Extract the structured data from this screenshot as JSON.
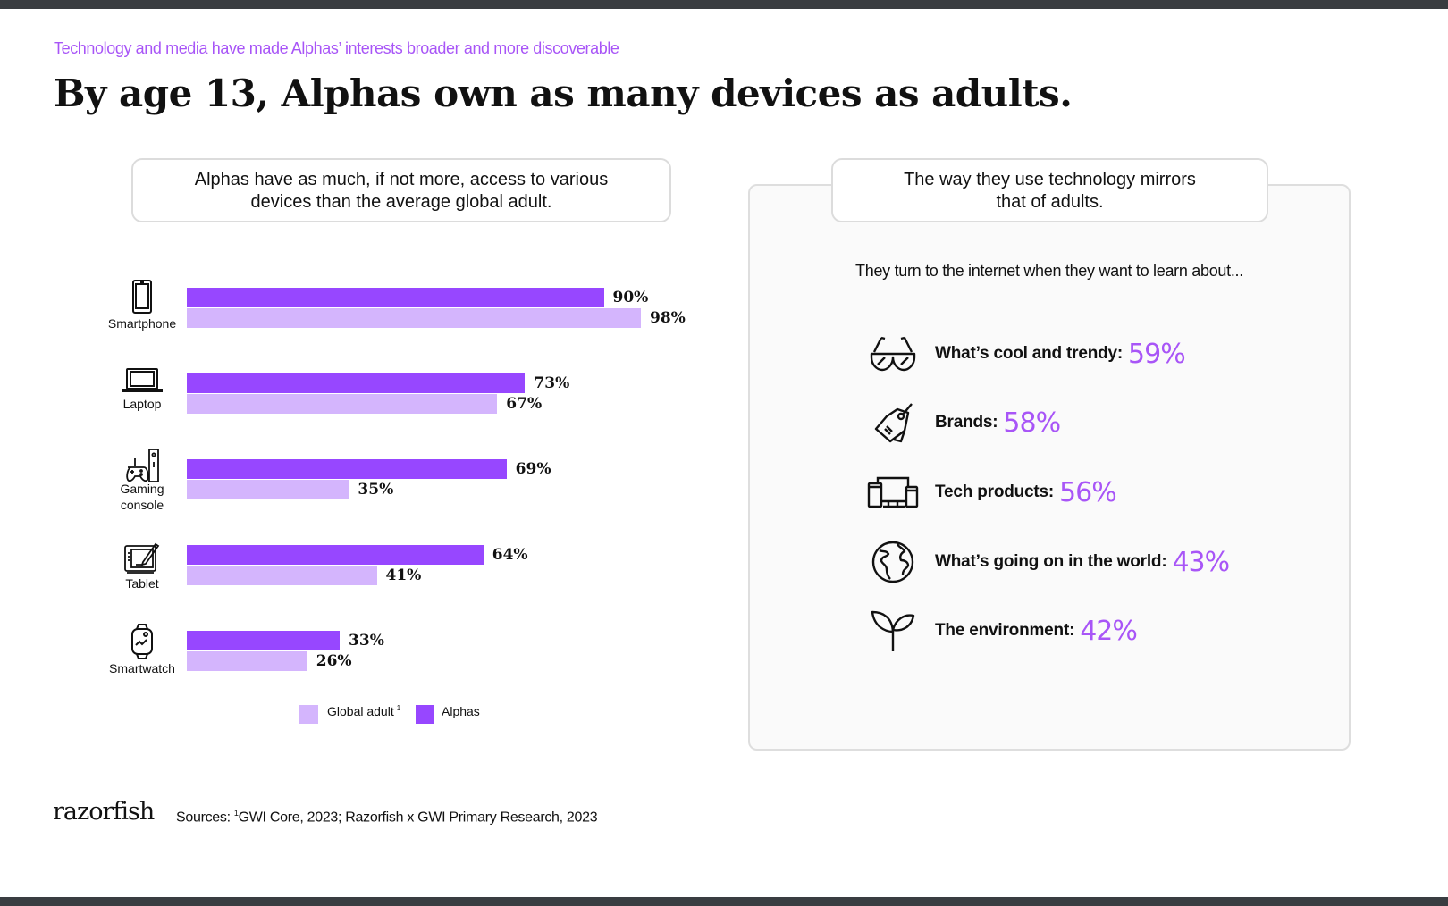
{
  "header": {
    "kicker": "Technology and media have made Alphas’ interests broader and more discoverable",
    "title": "By age 13, Alphas own as many devices as adults."
  },
  "left_box": {
    "line1": "Alphas have as much, if not more, access to various",
    "line2": "devices than the average global adult."
  },
  "right_box": {
    "line1": "The way they use technology mirrors",
    "line2": "that of adults."
  },
  "panel": {
    "intro": "They turn to the internet when they want to learn about...",
    "items": [
      {
        "icon": "sunglasses-icon",
        "label": "What’s cool and trendy:",
        "value": "59%"
      },
      {
        "icon": "price-tag-icon",
        "label": "Brands:",
        "value": "58%"
      },
      {
        "icon": "devices-icon",
        "label": "Tech products:",
        "value": "56%"
      },
      {
        "icon": "globe-icon",
        "label": "What’s going on in the world:",
        "value": "43%"
      },
      {
        "icon": "sprout-icon",
        "label": "The environment:",
        "value": "42%"
      }
    ]
  },
  "chart_data": {
    "type": "bar",
    "orientation": "horizontal",
    "title": "",
    "xlabel": "",
    "ylabel": "",
    "xlim": [
      0,
      100
    ],
    "grid": false,
    "legend_position": "bottom",
    "categories": [
      "Smartphone",
      "Laptop",
      "Gaming console",
      "Tablet",
      "Smartwatch"
    ],
    "category_icons": [
      "smartphone-icon",
      "laptop-icon",
      "gaming-console-icon",
      "tablet-icon",
      "smartwatch-icon"
    ],
    "series": [
      {
        "name": "Alphas",
        "color": "#9747ff",
        "values": [
          90,
          73,
          69,
          64,
          33
        ],
        "labels": [
          "90%",
          "73%",
          "69%",
          "64%",
          "33%"
        ]
      },
      {
        "name": "Global adult",
        "footnote": "1",
        "color": "#d4b5fd",
        "values": [
          98,
          67,
          35,
          41,
          26
        ],
        "labels": [
          "98%",
          "67%",
          "35%",
          "41%",
          "26%"
        ]
      }
    ]
  },
  "legend": {
    "global_adult": "Global adult",
    "global_adult_footnote": "1",
    "alphas": "Alphas"
  },
  "footer": {
    "logo": "razorfish",
    "sources_prefix": "Sources: ",
    "sources_footnote": "1",
    "sources_text": "GWI Core, 2023; Razorfish x GWI Primary Research, 2023"
  }
}
